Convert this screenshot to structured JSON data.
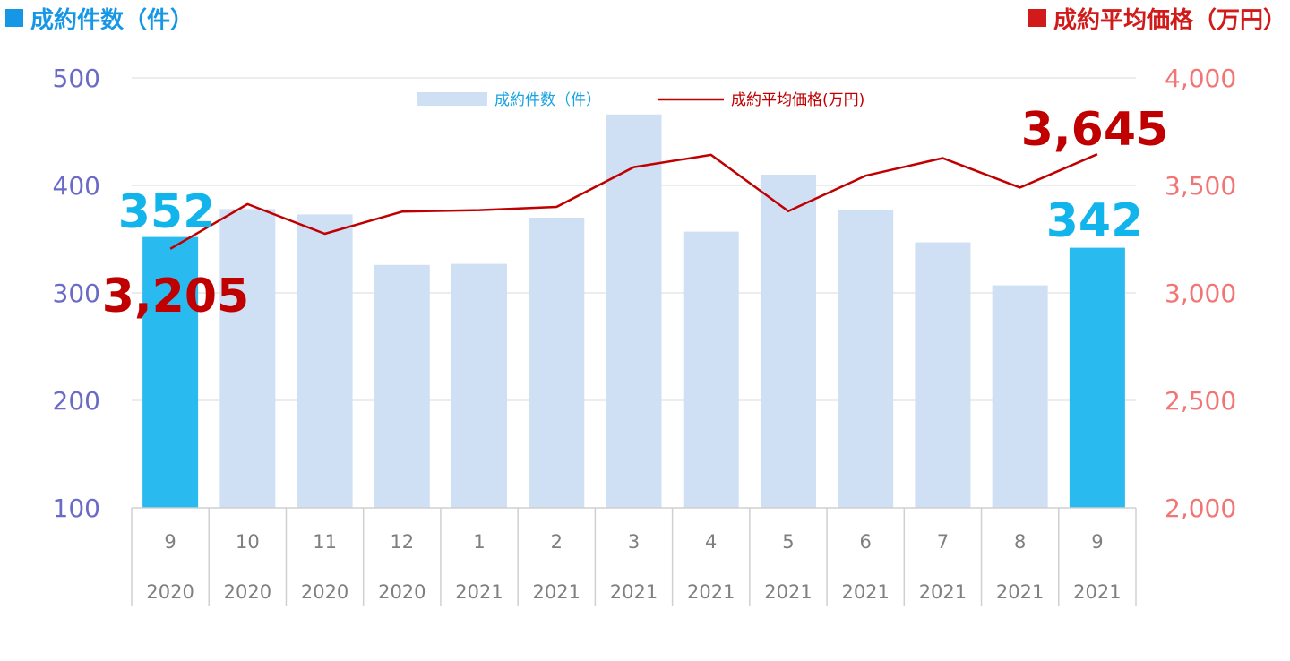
{
  "header": {
    "left": {
      "label": "成約件数（件）",
      "color": "#1597e5"
    },
    "right": {
      "label": "成約平均価格（万円）",
      "color": "#d11a1a"
    }
  },
  "chart_data": {
    "type": "bar",
    "categories": [
      {
        "month": "9",
        "year": "2020"
      },
      {
        "month": "10",
        "year": "2020"
      },
      {
        "month": "11",
        "year": "2020"
      },
      {
        "month": "12",
        "year": "2020"
      },
      {
        "month": "1",
        "year": "2021"
      },
      {
        "month": "2",
        "year": "2021"
      },
      {
        "month": "3",
        "year": "2021"
      },
      {
        "month": "4",
        "year": "2021"
      },
      {
        "month": "5",
        "year": "2021"
      },
      {
        "month": "6",
        "year": "2021"
      },
      {
        "month": "7",
        "year": "2021"
      },
      {
        "month": "8",
        "year": "2021"
      },
      {
        "month": "9",
        "year": "2021"
      }
    ],
    "series": [
      {
        "name": "成約件数（件）",
        "type": "bar",
        "axis": "left",
        "values": [
          352,
          378,
          373,
          326,
          327,
          370,
          466,
          357,
          410,
          377,
          347,
          307,
          342
        ],
        "color": "#cfdff4",
        "highlight_color": "#29bbef",
        "highlight_indices": [
          0,
          12
        ]
      },
      {
        "name": "成約平均価格(万円)",
        "type": "line",
        "axis": "right",
        "values": [
          3205,
          3413,
          3275,
          3378,
          3385,
          3400,
          3585,
          3642,
          3380,
          3545,
          3627,
          3490,
          3645
        ],
        "color": "#c00000"
      }
    ],
    "left_axis": {
      "ylim": [
        100,
        500
      ],
      "ticks": [
        100,
        200,
        300,
        400,
        500
      ],
      "color": "#6b6bc7"
    },
    "right_axis": {
      "ylim": [
        2000,
        4000
      ],
      "ticks": [
        "2,000",
        "2,500",
        "3,000",
        "3,500",
        "4,000"
      ],
      "color": "#f27474"
    },
    "grid": true,
    "legend": "top-center",
    "annotations": [
      {
        "text": "352",
        "series": 0,
        "index": 0,
        "color": "#12b4ec"
      },
      {
        "text": "342",
        "series": 0,
        "index": 12,
        "color": "#12b4ec"
      },
      {
        "text": "3,205",
        "series": 1,
        "index": 0,
        "color": "#c00000"
      },
      {
        "text": "3,645",
        "series": 1,
        "index": 12,
        "color": "#c00000"
      }
    ]
  }
}
